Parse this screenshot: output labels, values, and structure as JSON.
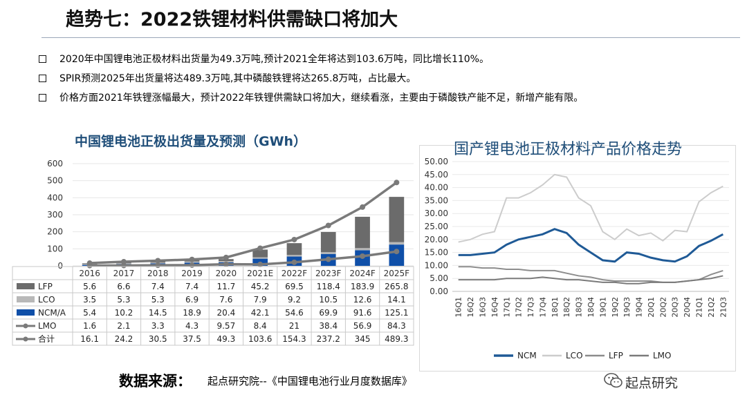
{
  "slide": {
    "title": "趋势七：2022铁锂材料供需缺口将加大",
    "bullets": [
      "2020年中国锂电池正极材料出货量为49.3万吨,预计2021全年将达到103.6万吨，同比增长110%。",
      "SPIR预测2025年出货量将达489.3万吨,其中磷酸铁锂将达265.8万吨，占比最大。",
      "价格方面2021年铁锂涨幅最大，预计2022年铁锂供需缺口将加大，继续看涨，主要由于磷酸铁产能不足，新增产能有限。"
    ],
    "footer_label": "数据来源：",
    "footer_text": "起点研究院--《中国锂电池行业月度数据库》",
    "brand": "起点研究"
  },
  "chart_data": [
    {
      "type": "bar",
      "title": "中国锂电池正极出货量及预测（GWh）",
      "categories": [
        "2016",
        "2017",
        "2018",
        "2019",
        "2020",
        "2021E",
        "2022F",
        "2023F",
        "2024F",
        "2025F"
      ],
      "ylim": [
        0,
        600
      ],
      "yticks": [
        "0",
        "100",
        "200",
        "300",
        "400",
        "500",
        "600"
      ],
      "series": [
        {
          "name": "LFP",
          "color": "#6b6b6b",
          "kind": "bar",
          "values": [
            5.6,
            6.6,
            7.4,
            7.4,
            11.7,
            45.2,
            69.5,
            118.4,
            183.9,
            265.8
          ],
          "labels": [
            "5.6",
            "6.6",
            "7.4",
            "7.4",
            "11.7",
            "45.2",
            "69.5",
            "118.4",
            "183.9",
            "265.8"
          ]
        },
        {
          "name": "LCO",
          "color": "#b8b8b8",
          "kind": "bar",
          "values": [
            3.5,
            5.3,
            5.3,
            6.9,
            7.6,
            7.9,
            9.2,
            10.5,
            12.6,
            14.1
          ],
          "labels": [
            "3.5",
            "5.3",
            "5.3",
            "6.9",
            "7.6",
            "7.9",
            "9.2",
            "10.5",
            "12.6",
            "14.1"
          ]
        },
        {
          "name": "NCM/A",
          "color": "#0f4fa8",
          "kind": "bar",
          "values": [
            5.4,
            10.2,
            14.5,
            18.9,
            20.4,
            42.1,
            54.6,
            69.9,
            91.6,
            125.1
          ],
          "labels": [
            "5.4",
            "10.2",
            "14.5",
            "18.9",
            "20.4",
            "42.1",
            "54.6",
            "69.9",
            "91.6",
            "125.1"
          ]
        },
        {
          "name": "LMO",
          "color": "#7a7a7a",
          "kind": "line",
          "values": [
            1.6,
            2.1,
            3.3,
            4.3,
            9.57,
            8.4,
            21,
            38.4,
            56.9,
            84.3
          ],
          "labels": [
            "1.6",
            "2.1",
            "3.3",
            "4.3",
            "9.57",
            "8.4",
            "21",
            "38.4",
            "56.9",
            "84.3"
          ]
        },
        {
          "name": "合计",
          "color": "#7a7a7a",
          "kind": "line",
          "values": [
            16.1,
            24.2,
            30.5,
            37.5,
            49.3,
            103.6,
            154.3,
            237.2,
            345,
            489.3
          ],
          "labels": [
            "16.1",
            "24.2",
            "30.5",
            "37.5",
            "49.3",
            "103.6",
            "154.3",
            "237.2",
            "345",
            "489.3"
          ]
        }
      ]
    },
    {
      "type": "line",
      "title": "国产锂电池正极材料产品价格走势",
      "categories": [
        "16Q1",
        "16Q2",
        "16Q3",
        "16Q4",
        "17Q1",
        "17Q2",
        "17Q3",
        "17Q4",
        "18Q1",
        "18Q2",
        "18Q3",
        "18Q4",
        "19Q1",
        "19Q2",
        "19Q3",
        "19Q4",
        "20Q1",
        "20Q2",
        "20Q3",
        "20Q4",
        "21Q1",
        "21Q2",
        "21Q3"
      ],
      "ylim": [
        0,
        50
      ],
      "yticks": [
        "0.00",
        "5.00",
        "10.00",
        "15.00",
        "20.00",
        "25.00",
        "30.00",
        "35.00",
        "40.00",
        "45.00",
        "50.00"
      ],
      "legend_position": "bottom",
      "series": [
        {
          "name": "NCM",
          "color": "#1f5a96",
          "width": 3,
          "values": [
            14,
            14,
            14.5,
            15,
            18,
            20,
            21,
            22,
            24,
            22.5,
            18,
            15,
            12,
            11.5,
            15,
            14.5,
            13,
            12,
            11.5,
            13.5,
            17.5,
            19.5,
            22
          ]
        },
        {
          "name": "LCO",
          "color": "#cccccc",
          "width": 2,
          "values": [
            19,
            20,
            22,
            23,
            36,
            36,
            38,
            41,
            45,
            44,
            36,
            33,
            23,
            20,
            24,
            21.5,
            22.5,
            19.5,
            23.5,
            23,
            34.5,
            38,
            40.5
          ]
        },
        {
          "name": "LFP",
          "color": "#8c8c8c",
          "width": 2,
          "values": [
            9.5,
            9.5,
            9,
            9,
            8.5,
            8.5,
            8,
            8,
            8,
            7,
            6,
            5.5,
            4.5,
            4,
            4,
            4,
            4,
            3.5,
            3.5,
            4,
            4.5,
            6.5,
            8
          ]
        },
        {
          "name": "LMO",
          "color": "#7a7a7a",
          "width": 2,
          "values": [
            4.5,
            4.5,
            4.5,
            4.5,
            5,
            5,
            5,
            5.5,
            5,
            4.5,
            4.5,
            4,
            3.5,
            3.5,
            3,
            3,
            3.5,
            3.5,
            3.5,
            4,
            4.5,
            5,
            6
          ]
        }
      ]
    }
  ]
}
